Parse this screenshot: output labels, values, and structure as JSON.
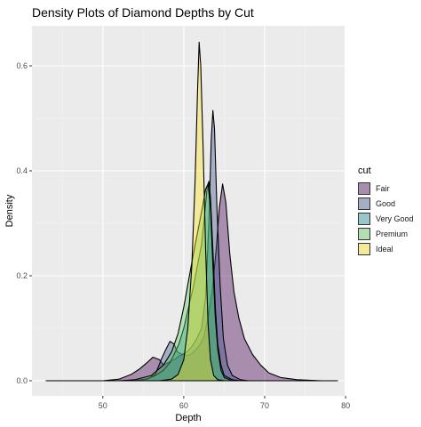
{
  "chart_data": {
    "type": "area",
    "title": "Density Plots of Diamond Depths by Cut",
    "xlabel": "Depth",
    "ylabel": "Density",
    "xlim": [
      43,
      79
    ],
    "ylim": [
      0,
      0.65
    ],
    "x_ticks": [
      "50",
      "60",
      "70",
      "80"
    ],
    "y_ticks": [
      "0.0",
      "0.2",
      "0.4",
      "0.6"
    ],
    "grid": true,
    "legend": {
      "title": "cut",
      "position": "right"
    },
    "series": [
      {
        "name": "Fair",
        "color": "#440154",
        "points": [
          [
            43,
            0
          ],
          [
            50,
            0
          ],
          [
            52,
            0.003
          ],
          [
            53.5,
            0.012
          ],
          [
            54.5,
            0.022
          ],
          [
            55.5,
            0.035
          ],
          [
            56.2,
            0.045
          ],
          [
            57,
            0.04
          ],
          [
            57.5,
            0.03
          ],
          [
            58,
            0.034
          ],
          [
            58.5,
            0.038
          ],
          [
            59,
            0.042
          ],
          [
            59.5,
            0.048
          ],
          [
            60,
            0.05
          ],
          [
            60.5,
            0.048
          ],
          [
            61,
            0.052
          ],
          [
            61.5,
            0.06
          ],
          [
            62,
            0.068
          ],
          [
            62.5,
            0.085
          ],
          [
            63,
            0.12
          ],
          [
            63.5,
            0.17
          ],
          [
            64,
            0.25
          ],
          [
            64.4,
            0.33
          ],
          [
            64.8,
            0.375
          ],
          [
            65.2,
            0.34
          ],
          [
            65.7,
            0.24
          ],
          [
            66.2,
            0.17
          ],
          [
            66.8,
            0.12
          ],
          [
            67.5,
            0.08
          ],
          [
            68.5,
            0.05
          ],
          [
            69.5,
            0.03
          ],
          [
            70.5,
            0.015
          ],
          [
            72,
            0.006
          ],
          [
            74,
            0.002
          ],
          [
            77,
            0
          ],
          [
            79,
            0
          ]
        ]
      },
      {
        "name": "Good",
        "color": "#3b528b",
        "points": [
          [
            43,
            0
          ],
          [
            54,
            0
          ],
          [
            55.5,
            0.003
          ],
          [
            56.5,
            0.012
          ],
          [
            57.2,
            0.04
          ],
          [
            57.8,
            0.06
          ],
          [
            58.3,
            0.075
          ],
          [
            58.8,
            0.07
          ],
          [
            59.2,
            0.055
          ],
          [
            59.8,
            0.05
          ],
          [
            60.4,
            0.055
          ],
          [
            61,
            0.065
          ],
          [
            61.6,
            0.08
          ],
          [
            62.2,
            0.1
          ],
          [
            62.7,
            0.16
          ],
          [
            63.1,
            0.3
          ],
          [
            63.4,
            0.46
          ],
          [
            63.6,
            0.515
          ],
          [
            63.8,
            0.48
          ],
          [
            64.1,
            0.33
          ],
          [
            64.5,
            0.18
          ],
          [
            64.9,
            0.08
          ],
          [
            65.4,
            0.03
          ],
          [
            66,
            0.01
          ],
          [
            67,
            0.002
          ],
          [
            68,
            0
          ],
          [
            79,
            0
          ]
        ]
      },
      {
        "name": "Very Good",
        "color": "#21908c",
        "points": [
          [
            43,
            0
          ],
          [
            54,
            0
          ],
          [
            55.5,
            0.004
          ],
          [
            56.5,
            0.01
          ],
          [
            57.5,
            0.02
          ],
          [
            58.3,
            0.035
          ],
          [
            58.8,
            0.05
          ],
          [
            59.4,
            0.07
          ],
          [
            60,
            0.1
          ],
          [
            60.6,
            0.14
          ],
          [
            61.2,
            0.18
          ],
          [
            61.7,
            0.22
          ],
          [
            62.2,
            0.26
          ],
          [
            62.6,
            0.32
          ],
          [
            62.9,
            0.37
          ],
          [
            63.1,
            0.38
          ],
          [
            63.3,
            0.35
          ],
          [
            63.6,
            0.25
          ],
          [
            63.9,
            0.14
          ],
          [
            64.2,
            0.07
          ],
          [
            64.6,
            0.03
          ],
          [
            65,
            0.01
          ],
          [
            66,
            0.002
          ],
          [
            67,
            0
          ],
          [
            79,
            0
          ]
        ]
      },
      {
        "name": "Premium",
        "color": "#5dc863",
        "points": [
          [
            43,
            0
          ],
          [
            52,
            0
          ],
          [
            54,
            0.002
          ],
          [
            56,
            0.01
          ],
          [
            57.5,
            0.03
          ],
          [
            58.5,
            0.055
          ],
          [
            59.3,
            0.09
          ],
          [
            60,
            0.14
          ],
          [
            60.7,
            0.2
          ],
          [
            61.3,
            0.25
          ],
          [
            61.8,
            0.29
          ],
          [
            62.3,
            0.33
          ],
          [
            62.7,
            0.365
          ],
          [
            63,
            0.375
          ],
          [
            63.3,
            0.33
          ],
          [
            63.6,
            0.22
          ],
          [
            63.9,
            0.12
          ],
          [
            64.2,
            0.06
          ],
          [
            64.6,
            0.02
          ],
          [
            65,
            0.006
          ],
          [
            66,
            0
          ],
          [
            79,
            0
          ]
        ]
      },
      {
        "name": "Ideal",
        "color": "#fde725",
        "points": [
          [
            43,
            0
          ],
          [
            57,
            0
          ],
          [
            58.5,
            0.003
          ],
          [
            59.3,
            0.012
          ],
          [
            60,
            0.04
          ],
          [
            60.5,
            0.1
          ],
          [
            61,
            0.22
          ],
          [
            61.4,
            0.38
          ],
          [
            61.7,
            0.55
          ],
          [
            61.9,
            0.645
          ],
          [
            62.1,
            0.6
          ],
          [
            62.4,
            0.44
          ],
          [
            62.7,
            0.25
          ],
          [
            63,
            0.11
          ],
          [
            63.3,
            0.04
          ],
          [
            63.7,
            0.01
          ],
          [
            64.2,
            0.002
          ],
          [
            65,
            0
          ],
          [
            79,
            0
          ]
        ]
      }
    ]
  }
}
